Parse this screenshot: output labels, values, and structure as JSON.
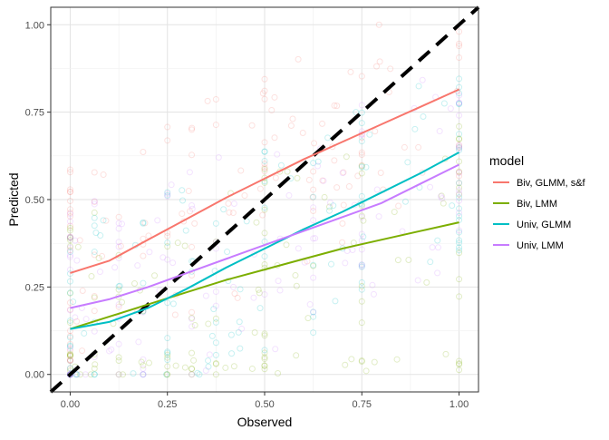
{
  "chart_data": {
    "type": "scatter",
    "title": "",
    "xlabel": "Observed",
    "ylabel": "Predicted",
    "xlim": [
      -0.05,
      1.05
    ],
    "ylim": [
      -0.05,
      1.05
    ],
    "x_ticks": [
      0,
      0.25,
      0.5,
      0.75,
      1
    ],
    "x_tick_labels": [
      "0.00",
      "0.25",
      "0.50",
      "0.75",
      "1.00"
    ],
    "y_ticks": [
      0,
      0.25,
      0.5,
      0.75,
      1
    ],
    "y_tick_labels": [
      "0.00",
      "0.25",
      "0.50",
      "0.75",
      "1.00"
    ],
    "grid": true,
    "legend": {
      "title": "model",
      "position": "right"
    },
    "reference_line": {
      "style": "dashed",
      "color": "#000000",
      "x": [
        -0.05,
        1.05
      ],
      "y": [
        -0.05,
        1.05
      ]
    },
    "series": [
      {
        "name": "Biv, GLMM, s&f",
        "color": "#F8766D",
        "trend_x": [
          0,
          0.1,
          0.2,
          0.3,
          0.4,
          0.5,
          0.6,
          0.7,
          0.8,
          0.9,
          1.0
        ],
        "trend_y": [
          0.29,
          0.325,
          0.385,
          0.445,
          0.505,
          0.56,
          0.615,
          0.665,
          0.715,
          0.765,
          0.815
        ]
      },
      {
        "name": "Biv, LMM",
        "color": "#7CAE00",
        "trend_x": [
          0,
          0.1,
          0.2,
          0.3,
          0.4,
          0.5,
          0.6,
          0.7,
          0.8,
          0.9,
          1.0
        ],
        "trend_y": [
          0.13,
          0.165,
          0.2,
          0.235,
          0.27,
          0.3,
          0.33,
          0.36,
          0.385,
          0.41,
          0.435
        ]
      },
      {
        "name": "Univ, GLMM",
        "color": "#00BFC4",
        "trend_x": [
          0,
          0.1,
          0.2,
          0.3,
          0.4,
          0.5,
          0.6,
          0.7,
          0.8,
          0.9,
          1.0
        ],
        "trend_y": [
          0.13,
          0.15,
          0.19,
          0.245,
          0.305,
          0.36,
          0.415,
          0.465,
          0.52,
          0.575,
          0.635
        ]
      },
      {
        "name": "Univ, LMM",
        "color": "#C77CFF",
        "trend_x": [
          0,
          0.1,
          0.2,
          0.3,
          0.4,
          0.5,
          0.6,
          0.7,
          0.8,
          0.9,
          1.0
        ],
        "trend_y": [
          0.19,
          0.215,
          0.25,
          0.29,
          0.33,
          0.37,
          0.41,
          0.45,
          0.49,
          0.545,
          0.6
        ]
      }
    ]
  }
}
